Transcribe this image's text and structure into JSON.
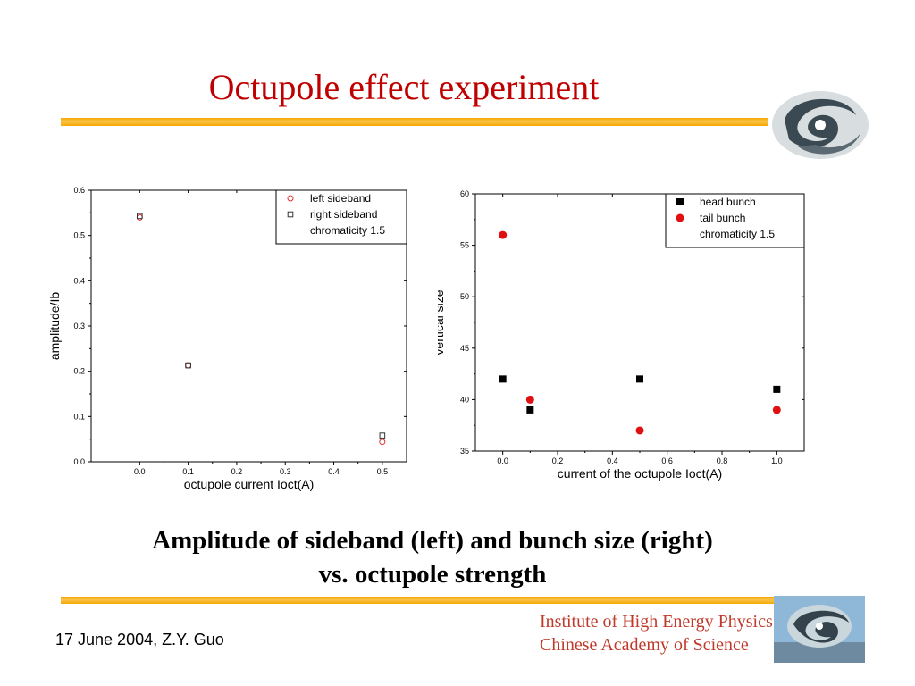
{
  "slide": {
    "title": "Octupole effect experiment",
    "caption_line1": "Amplitude of sideband (left) and bunch size (right)",
    "caption_line2": "vs. octupole strength",
    "footer_left": "17 June 2004,  Z.Y. Guo",
    "institute_line1": "Institute of High Energy Physics",
    "institute_line2": "Chinese Academy of Science",
    "accent_colors": {
      "title": "#c00000",
      "bar": "#f6a800",
      "institute": "#c0392b"
    },
    "logo_icon": "ihep-swirl-logo-icon"
  },
  "chart_data": [
    {
      "type": "scatter",
      "xlabel": "octupole current Ioct(A)",
      "ylabel": "amplitude/Ib",
      "xlim": [
        -0.1,
        0.55
      ],
      "ylim": [
        0.0,
        0.6
      ],
      "xticks": [
        "0.0",
        "0.1",
        "0.2",
        "0.3",
        "0.4",
        "0.5"
      ],
      "yticks": [
        "0.0",
        "0.1",
        "0.2",
        "0.3",
        "0.4",
        "0.5",
        "0.6"
      ],
      "legend_position": "top-right",
      "legend_note": "chromaticity 1.5",
      "series": [
        {
          "name": "left sideband",
          "marker": "open-circle",
          "color": "#e03030",
          "x": [
            0.0,
            0.1,
            0.5
          ],
          "y": [
            0.54,
            0.213,
            0.044
          ]
        },
        {
          "name": "right sideband",
          "marker": "open-square",
          "color": "#333333",
          "x": [
            0.0,
            0.1,
            0.5
          ],
          "y": [
            0.543,
            0.213,
            0.058
          ]
        }
      ]
    },
    {
      "type": "scatter",
      "xlabel": "current of the octupole Ioct(A)",
      "ylabel": "vertical size",
      "xlim": [
        -0.1,
        1.1
      ],
      "ylim": [
        35,
        60
      ],
      "xticks": [
        "0.0",
        "0.2",
        "0.4",
        "0.6",
        "0.8",
        "1.0"
      ],
      "yticks": [
        "35",
        "40",
        "45",
        "50",
        "55",
        "60"
      ],
      "legend_position": "top-right",
      "legend_note": "chromaticity 1.5",
      "series": [
        {
          "name": "head bunch",
          "marker": "filled-square",
          "color": "#000000",
          "x": [
            0.0,
            0.1,
            0.5,
            1.0
          ],
          "y": [
            42,
            39,
            42,
            41
          ]
        },
        {
          "name": "tail bunch",
          "marker": "filled-circle",
          "color": "#e01010",
          "x": [
            0.0,
            0.1,
            0.5,
            1.0
          ],
          "y": [
            56,
            40,
            37,
            39
          ]
        }
      ]
    }
  ]
}
